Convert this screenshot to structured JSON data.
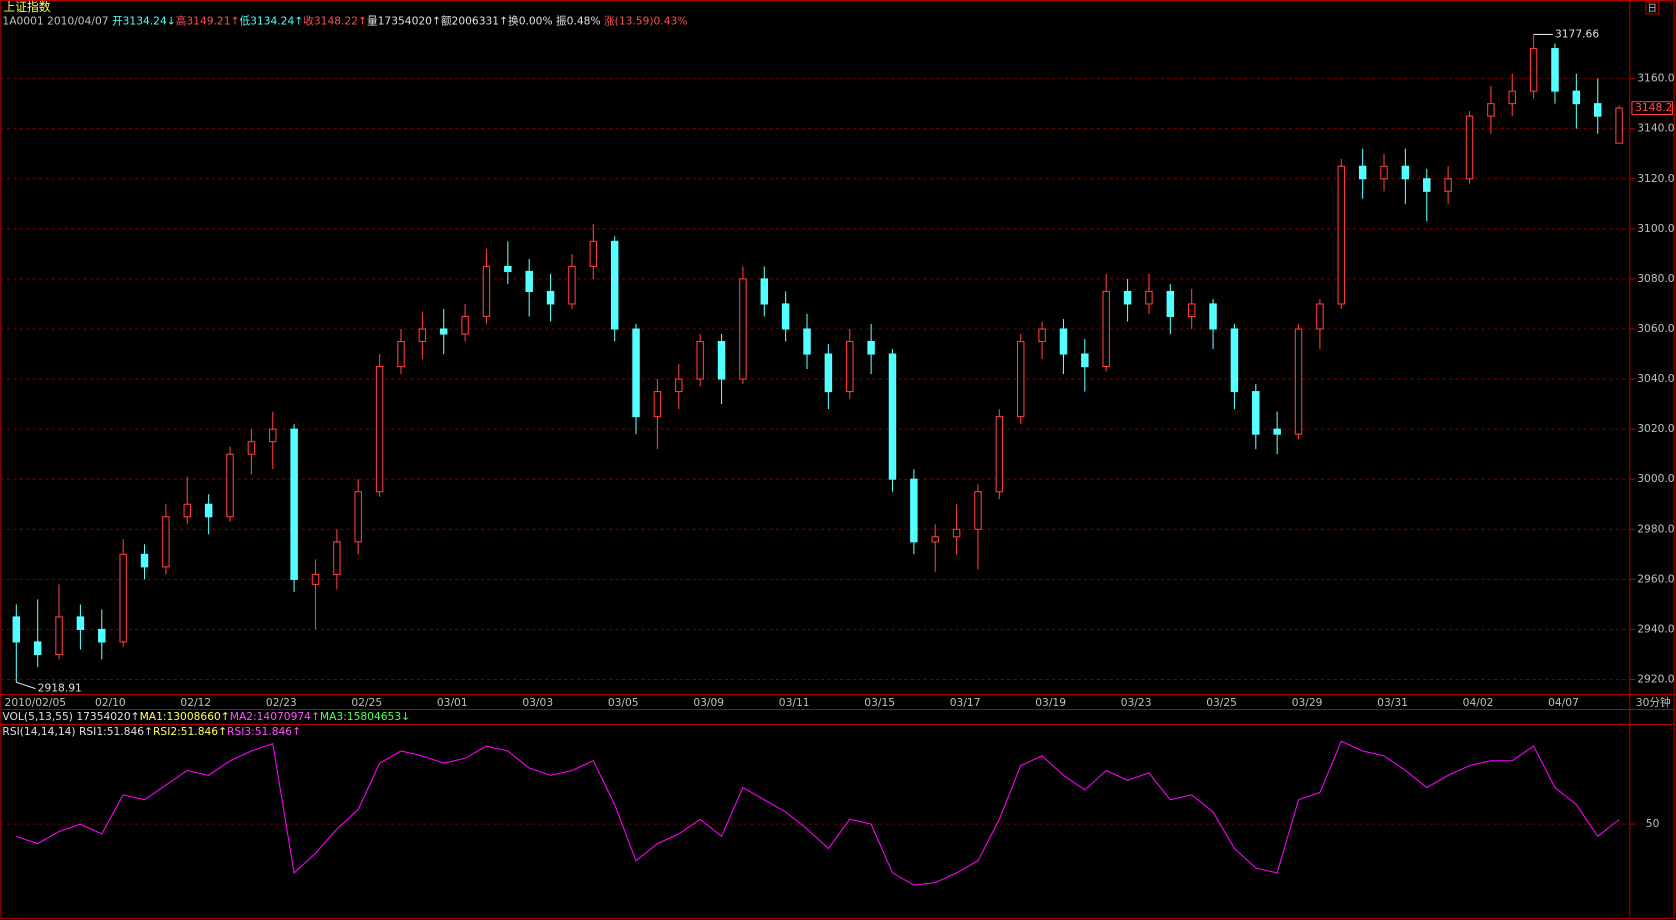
{
  "header": {
    "title": "上证指数",
    "corner": "日",
    "info": [
      {
        "text": "1A0001 2010/04/07 ",
        "color": "#c0c0c0"
      },
      {
        "text": "开3134.24↓",
        "color": "#54ffff"
      },
      {
        "text": "高3149.21↑",
        "color": "#ff5050"
      },
      {
        "text": "低3134.24↑",
        "color": "#54ffff"
      },
      {
        "text": "收3148.22↑",
        "color": "#ff5050"
      },
      {
        "text": "量17354020↑",
        "color": "#e0e0e0"
      },
      {
        "text": "额2006331↑",
        "color": "#e0e0e0"
      },
      {
        "text": "换0.00% ",
        "color": "#e0e0e0"
      },
      {
        "text": "振0.48% ",
        "color": "#e0e0e0"
      },
      {
        "text": "涨(13.59)0.43%",
        "color": "#ff5050"
      }
    ],
    "vol": [
      {
        "text": "VOL(5,13,55) ",
        "color": "#e0e0e0"
      },
      {
        "text": "17354020↑",
        "color": "#e0e0e0"
      },
      {
        "text": "MA1:13008660↑",
        "color": "#ffff54"
      },
      {
        "text": "MA2:14070974↑",
        "color": "#ff54ff"
      },
      {
        "text": "MA3:15804653↓",
        "color": "#54ff54"
      }
    ],
    "rsi": [
      {
        "text": "RSI(14,14,14) ",
        "color": "#e0e0e0"
      },
      {
        "text": "RSI1:51.846↑",
        "color": "#e0e0e0"
      },
      {
        "text": "RSI2:51.846↑",
        "color": "#ffff54"
      },
      {
        "text": "RSI3:51.846↑",
        "color": "#ff54ff"
      }
    ],
    "period": "30分钟"
  },
  "chart_data": [
    {
      "type": "candlestick",
      "up_color": "#ff3c3c",
      "down_color": "#54ffff",
      "grid": true,
      "categories": [
        "2010/02/05",
        null,
        null,
        null,
        "02/10",
        null,
        null,
        null,
        "02/12",
        null,
        null,
        null,
        "02/23",
        null,
        null,
        null,
        "02/25",
        null,
        null,
        null,
        "03/01",
        null,
        null,
        null,
        "03/03",
        null,
        null,
        null,
        "03/05",
        null,
        null,
        null,
        "03/09",
        null,
        null,
        null,
        "03/11",
        null,
        null,
        null,
        "03/15",
        null,
        null,
        null,
        "03/17",
        null,
        null,
        null,
        "03/19",
        null,
        null,
        null,
        "03/23",
        null,
        null,
        null,
        "03/25",
        null,
        null,
        null,
        "03/29",
        null,
        null,
        null,
        "03/31",
        null,
        null,
        null,
        "04/02",
        null,
        null,
        null,
        "04/07",
        null,
        null,
        null
      ],
      "open": [
        2945,
        2935,
        2930,
        2945,
        2940,
        2935,
        2970,
        2965,
        2985,
        2990,
        2985,
        3010,
        3015,
        3020,
        2958,
        2962,
        2975,
        2995,
        3045,
        3055,
        3060,
        3058,
        3065,
        3085,
        3083,
        3075,
        3070,
        3085,
        3095,
        3060,
        3025,
        3035,
        3040,
        3055,
        3040,
        3080,
        3070,
        3060,
        3050,
        3035,
        3055,
        3050,
        3000,
        2975,
        2977,
        2980,
        2995,
        3025,
        3055,
        3060,
        3050,
        3045,
        3075,
        3070,
        3075,
        3065,
        3070,
        3060,
        3035,
        3020,
        3018,
        3060,
        3070,
        3125,
        3120,
        3125,
        3120,
        3115,
        3120,
        3145,
        3150,
        3155,
        3172,
        3155,
        3150,
        3134.24
      ],
      "high": [
        2950,
        2952,
        2958,
        2950,
        2948,
        2976,
        2974,
        2990,
        3001,
        2994,
        3013,
        3020,
        3027,
        3022,
        2968,
        2980,
        3000,
        3050,
        3060,
        3067,
        3068,
        3070,
        3092,
        3095,
        3088,
        3082,
        3090,
        3102,
        3097,
        3062,
        3040,
        3046,
        3058,
        3058,
        3085,
        3085,
        3075,
        3066,
        3054,
        3060,
        3062,
        3052,
        3004,
        2982,
        2990,
        2998,
        3028,
        3058,
        3063,
        3064,
        3056,
        3082,
        3080,
        3082,
        3078,
        3076,
        3072,
        3062,
        3038,
        3027,
        3062,
        3072,
        3128,
        3132,
        3130,
        3132,
        3124,
        3125,
        3147,
        3157,
        3162,
        3177.66,
        3174,
        3162,
        3160,
        3149.21
      ],
      "low": [
        2918.91,
        2925,
        2928,
        2932,
        2928,
        2933,
        2960,
        2962,
        2982,
        2978,
        2983,
        3002,
        3004,
        2955,
        2940,
        2956,
        2970,
        2993,
        3042,
        3048,
        3050,
        3055,
        3062,
        3078,
        3065,
        3063,
        3068,
        3080,
        3055,
        3018,
        3012,
        3028,
        3037,
        3030,
        3038,
        3065,
        3055,
        3044,
        3028,
        3032,
        3042,
        2995,
        2970,
        2963,
        2970,
        2964,
        2992,
        3022,
        3048,
        3042,
        3035,
        3043,
        3063,
        3066,
        3058,
        3060,
        3052,
        3028,
        3012,
        3010,
        3016,
        3052,
        3068,
        3112,
        3115,
        3110,
        3103,
        3110,
        3118,
        3138,
        3145,
        3152,
        3150,
        3140,
        3138,
        3134.24
      ],
      "close": [
        2935,
        2930,
        2945,
        2940,
        2935,
        2970,
        2965,
        2985,
        2990,
        2985,
        3010,
        3015,
        3020,
        2960,
        2962,
        2975,
        2995,
        3045,
        3055,
        3060,
        3058,
        3065,
        3085,
        3083,
        3075,
        3070,
        3085,
        3095,
        3060,
        3025,
        3035,
        3040,
        3055,
        3040,
        3080,
        3070,
        3060,
        3050,
        3035,
        3055,
        3050,
        3000,
        2975,
        2977,
        2980,
        2995,
        3025,
        3055,
        3060,
        3050,
        3045,
        3075,
        3070,
        3075,
        3065,
        3070,
        3060,
        3035,
        3018,
        3018,
        3060,
        3070,
        3125,
        3120,
        3125,
        3120,
        3115,
        3120,
        3145,
        3150,
        3155,
        3172,
        3155,
        3150,
        3145,
        3148.22
      ],
      "ylim": [
        2914,
        3185
      ],
      "yticks": [
        {
          "value": 2920,
          "label": "2920.0"
        },
        {
          "value": 2940,
          "label": "2940.0"
        },
        {
          "value": 2960,
          "label": "2960.0"
        },
        {
          "value": 2980,
          "label": "2980.0"
        },
        {
          "value": 3000,
          "label": "3000.0"
        },
        {
          "value": 3020,
          "label": "3020.0"
        },
        {
          "value": 3040,
          "label": "3040.0"
        },
        {
          "value": 3060,
          "label": "3060.0"
        },
        {
          "value": 3080,
          "label": "3080.0"
        },
        {
          "value": 3100,
          "label": "3100.0"
        },
        {
          "value": 3120,
          "label": "3120.0"
        },
        {
          "value": 3140,
          "label": "3140.0"
        },
        {
          "value": 3160,
          "label": "3160.0"
        }
      ],
      "max_label": "3177.66",
      "min_label": "2918.91",
      "last_label": "3148.2"
    },
    {
      "type": "line",
      "color": "#ff00ff",
      "grid": true,
      "values": [
        45,
        42,
        47,
        50,
        46,
        62,
        60,
        66,
        72,
        70,
        76,
        80,
        83,
        30,
        38,
        48,
        56,
        75,
        80,
        78,
        75,
        77,
        82,
        80,
        73,
        70,
        72,
        76,
        58,
        35,
        42,
        46,
        52,
        45,
        65,
        60,
        55,
        48,
        40,
        52,
        50,
        30,
        25,
        26,
        30,
        35,
        52,
        74,
        78,
        70,
        64,
        72,
        68,
        71,
        60,
        62,
        55,
        40,
        32,
        30,
        60,
        63,
        84,
        80,
        78,
        72,
        65,
        70,
        74,
        76,
        76,
        82,
        65,
        58,
        45,
        51.846
      ],
      "ylim": [
        12,
        90
      ],
      "yticks": [
        50
      ]
    }
  ]
}
